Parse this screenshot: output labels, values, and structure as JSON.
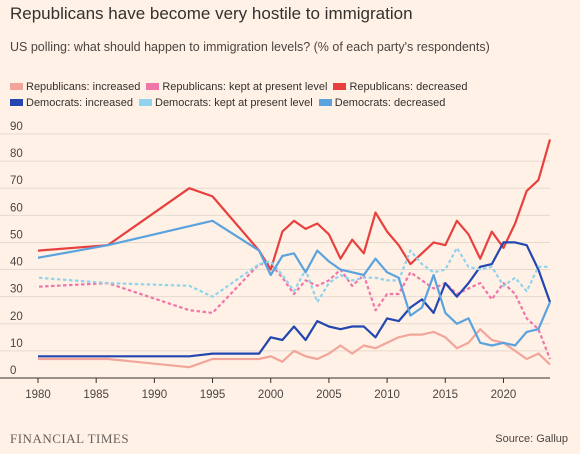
{
  "header": {
    "title": "Republicans have become very hostile to immigration",
    "subtitle": "US polling: what should happen to immigration levels? (% of each party's respondents)"
  },
  "footer": {
    "brand": "FINANCIAL TIMES",
    "source": "Source: Gallup"
  },
  "chart_data": {
    "type": "line",
    "title": "Republicans have become very hostile to immigration",
    "subtitle": "US polling: what should happen to immigration levels? (% of each party's respondents)",
    "xlabel": "",
    "ylabel": "",
    "xlim": [
      1980,
      2024
    ],
    "ylim": [
      0,
      90
    ],
    "x_ticks": [
      1980,
      1985,
      1990,
      1995,
      2000,
      2005,
      2010,
      2015,
      2020
    ],
    "y_ticks": [
      0,
      10,
      20,
      30,
      40,
      50,
      60,
      70,
      80,
      90
    ],
    "grid": true,
    "legend_position": "top",
    "series": [
      {
        "name": "Republicans: increased",
        "color": "#f2a59a",
        "dash": false,
        "points": [
          [
            1977,
            7
          ],
          [
            1986,
            7
          ],
          [
            1993,
            4
          ],
          [
            1995,
            7
          ],
          [
            1999,
            7
          ],
          [
            2000,
            8
          ],
          [
            2001,
            6
          ],
          [
            2002,
            10
          ],
          [
            2003,
            8
          ],
          [
            2004,
            7
          ],
          [
            2005,
            9
          ],
          [
            2006,
            12
          ],
          [
            2007,
            9
          ],
          [
            2008,
            12
          ],
          [
            2009,
            11
          ],
          [
            2010,
            13
          ],
          [
            2011,
            15
          ],
          [
            2012,
            16
          ],
          [
            2013,
            16
          ],
          [
            2014,
            17
          ],
          [
            2015,
            15
          ],
          [
            2016,
            11
          ],
          [
            2017,
            13
          ],
          [
            2018,
            18
          ],
          [
            2019,
            14
          ],
          [
            2020,
            13
          ],
          [
            2021,
            10
          ],
          [
            2022,
            7
          ],
          [
            2023,
            9
          ],
          [
            2024,
            5
          ]
        ]
      },
      {
        "name": "Republicans: kept at present level",
        "color": "#f075a9",
        "dash": true,
        "points": [
          [
            1977,
            33
          ],
          [
            1986,
            35
          ],
          [
            1993,
            25
          ],
          [
            1995,
            24
          ],
          [
            1999,
            42
          ],
          [
            2000,
            42
          ],
          [
            2001,
            37
          ],
          [
            2002,
            31
          ],
          [
            2003,
            36
          ],
          [
            2004,
            34
          ],
          [
            2005,
            36
          ],
          [
            2006,
            40
          ],
          [
            2007,
            34
          ],
          [
            2008,
            38
          ],
          [
            2009,
            25
          ],
          [
            2010,
            31
          ],
          [
            2011,
            31
          ],
          [
            2012,
            39
          ],
          [
            2013,
            36
          ],
          [
            2014,
            33
          ],
          [
            2015,
            35
          ],
          [
            2016,
            31
          ],
          [
            2017,
            33
          ],
          [
            2018,
            35
          ],
          [
            2019,
            29
          ],
          [
            2020,
            35
          ],
          [
            2021,
            31
          ],
          [
            2022,
            22
          ],
          [
            2023,
            18
          ],
          [
            2024,
            7
          ]
        ]
      },
      {
        "name": "Republicans: decreased",
        "color": "#e8403f",
        "dash": false,
        "points": [
          [
            1977,
            46
          ],
          [
            1986,
            49
          ],
          [
            1993,
            70
          ],
          [
            1995,
            67
          ],
          [
            1999,
            47
          ],
          [
            2000,
            40
          ],
          [
            2001,
            54
          ],
          [
            2002,
            58
          ],
          [
            2003,
            55
          ],
          [
            2004,
            57
          ],
          [
            2005,
            53
          ],
          [
            2006,
            44
          ],
          [
            2007,
            51
          ],
          [
            2008,
            46
          ],
          [
            2009,
            61
          ],
          [
            2010,
            54
          ],
          [
            2011,
            49
          ],
          [
            2012,
            42
          ],
          [
            2013,
            46
          ],
          [
            2014,
            50
          ],
          [
            2015,
            49
          ],
          [
            2016,
            58
          ],
          [
            2017,
            53
          ],
          [
            2018,
            44
          ],
          [
            2019,
            54
          ],
          [
            2020,
            48
          ],
          [
            2021,
            57
          ],
          [
            2022,
            69
          ],
          [
            2023,
            73
          ],
          [
            2024,
            88
          ]
        ]
      },
      {
        "name": "Democrats: increased",
        "color": "#2346b0",
        "dash": false,
        "points": [
          [
            1977,
            8
          ],
          [
            1986,
            8
          ],
          [
            1993,
            8
          ],
          [
            1995,
            9
          ],
          [
            1999,
            9
          ],
          [
            2000,
            15
          ],
          [
            2001,
            14
          ],
          [
            2002,
            19
          ],
          [
            2003,
            14
          ],
          [
            2004,
            21
          ],
          [
            2005,
            19
          ],
          [
            2006,
            18
          ],
          [
            2007,
            19
          ],
          [
            2008,
            19
          ],
          [
            2009,
            15
          ],
          [
            2010,
            22
          ],
          [
            2011,
            21
          ],
          [
            2012,
            26
          ],
          [
            2013,
            29
          ],
          [
            2014,
            24
          ],
          [
            2015,
            35
          ],
          [
            2016,
            30
          ],
          [
            2017,
            35
          ],
          [
            2018,
            41
          ],
          [
            2019,
            42
          ],
          [
            2020,
            50
          ],
          [
            2021,
            50
          ],
          [
            2022,
            49
          ],
          [
            2023,
            40
          ],
          [
            2024,
            28
          ]
        ]
      },
      {
        "name": "Democrats: kept at present level",
        "color": "#8fd3ee",
        "dash": true,
        "points": [
          [
            1977,
            38
          ],
          [
            1986,
            35
          ],
          [
            1993,
            34
          ],
          [
            1995,
            30
          ],
          [
            1999,
            42
          ],
          [
            2000,
            43
          ],
          [
            2001,
            38
          ],
          [
            2002,
            32
          ],
          [
            2003,
            40
          ],
          [
            2004,
            28
          ],
          [
            2005,
            35
          ],
          [
            2006,
            38
          ],
          [
            2007,
            36
          ],
          [
            2008,
            37
          ],
          [
            2009,
            37
          ],
          [
            2010,
            36
          ],
          [
            2011,
            36
          ],
          [
            2012,
            47
          ],
          [
            2013,
            42
          ],
          [
            2014,
            39
          ],
          [
            2015,
            40
          ],
          [
            2016,
            48
          ],
          [
            2017,
            41
          ],
          [
            2018,
            40
          ],
          [
            2019,
            41
          ],
          [
            2020,
            34
          ],
          [
            2021,
            37
          ],
          [
            2022,
            32
          ],
          [
            2023,
            41
          ],
          [
            2024,
            41
          ]
        ]
      },
      {
        "name": "Democrats: decreased",
        "color": "#5aa3de",
        "dash": false,
        "points": [
          [
            1977,
            42
          ],
          [
            1986,
            49
          ],
          [
            1993,
            56
          ],
          [
            1995,
            58
          ],
          [
            1999,
            47
          ],
          [
            2000,
            38
          ],
          [
            2001,
            45
          ],
          [
            2002,
            46
          ],
          [
            2003,
            39
          ],
          [
            2004,
            47
          ],
          [
            2005,
            43
          ],
          [
            2006,
            40
          ],
          [
            2007,
            39
          ],
          [
            2008,
            38
          ],
          [
            2009,
            44
          ],
          [
            2010,
            39
          ],
          [
            2011,
            37
          ],
          [
            2012,
            23
          ],
          [
            2013,
            26
          ],
          [
            2014,
            38
          ],
          [
            2015,
            24
          ],
          [
            2016,
            20
          ],
          [
            2017,
            22
          ],
          [
            2018,
            13
          ],
          [
            2019,
            12
          ],
          [
            2020,
            13
          ],
          [
            2021,
            12
          ],
          [
            2022,
            17
          ],
          [
            2023,
            18
          ],
          [
            2024,
            28
          ]
        ]
      }
    ]
  }
}
